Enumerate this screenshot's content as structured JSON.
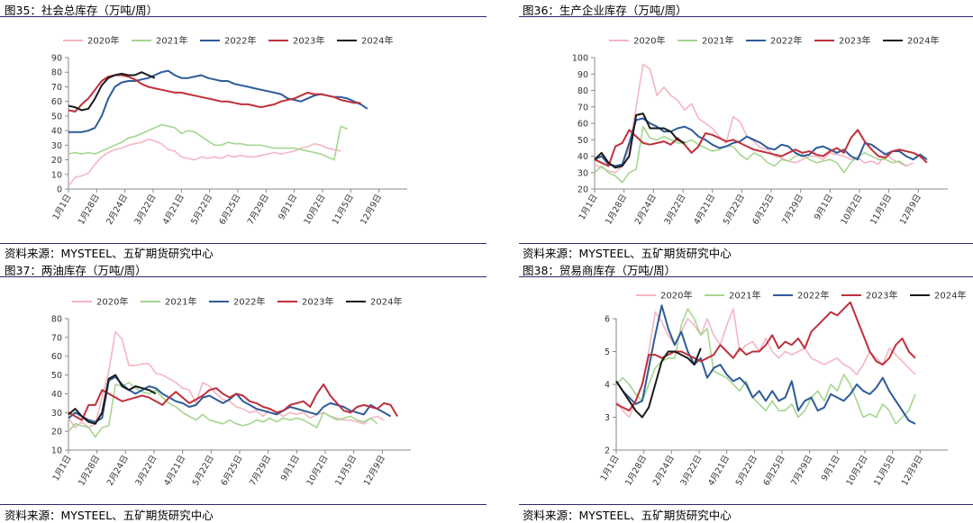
{
  "panels": [
    {
      "title": "图35：社会总库存（万吨/周）",
      "source": "资料来源：MYSTEEL、五矿期货研究中心",
      "chart_data": {
        "type": "line",
        "ylim": [
          0,
          90
        ],
        "yticks": [
          0,
          10,
          20,
          30,
          40,
          50,
          60,
          70,
          80,
          90
        ],
        "xticks": [
          "1月1日",
          "1月28日",
          "2月24日",
          "3月22日",
          "4月21日",
          "5月22日",
          "6月25日",
          "7月29日",
          "9月1日",
          "10月2日",
          "11月5日",
          "12月9日"
        ],
        "series": [
          {
            "name": "2020年",
            "color": "#f4b6c2",
            "values": [
              2,
              8,
              9,
              11,
              17,
              22,
              25,
              27,
              28,
              30,
              31,
              32,
              34,
              33,
              31,
              27,
              26,
              22,
              21,
              20,
              22,
              21,
              22,
              21,
              23,
              22,
              23,
              22,
              22,
              23,
              24,
              25,
              24,
              25,
              26,
              28,
              29,
              31,
              30,
              28,
              27,
              26
            ]
          },
          {
            "name": "2021年",
            "color": "#a5d68f",
            "values": [
              24,
              25,
              24,
              25,
              24,
              26,
              28,
              30,
              32,
              35,
              36,
              38,
              40,
              42,
              44,
              43,
              42,
              38,
              40,
              39,
              36,
              33,
              30,
              30,
              32,
              31,
              31,
              30,
              30,
              30,
              29,
              28,
              28,
              28,
              28,
              27,
              26,
              25,
              24,
              22,
              20,
              43,
              41
            ]
          },
          {
            "name": "2022年",
            "color": "#2e5b9a",
            "values": [
              39,
              39,
              39,
              40,
              42,
              50,
              62,
              70,
              73,
              74,
              74,
              75,
              76,
              78,
              80,
              81,
              78,
              76,
              76,
              77,
              78,
              76,
              75,
              74,
              74,
              72,
              71,
              70,
              69,
              68,
              67,
              66,
              65,
              62,
              61,
              60,
              62,
              64,
              65,
              64,
              63,
              63,
              62,
              60,
              58,
              55
            ]
          },
          {
            "name": "2023年",
            "color": "#c0303a",
            "values": [
              54,
              53,
              58,
              62,
              68,
              74,
              77,
              78,
              78,
              77,
              75,
              72,
              70,
              69,
              68,
              67,
              66,
              66,
              65,
              64,
              63,
              62,
              61,
              60,
              60,
              59,
              58,
              58,
              57,
              56,
              57,
              58,
              60,
              61,
              62,
              64,
              66,
              65,
              65,
              64,
              63,
              61,
              60,
              59,
              59
            ]
          },
          {
            "name": "2024年",
            "color": "#1a1a1a",
            "values": [
              57,
              56,
              54,
              55,
              62,
              71,
              76,
              78,
              79,
              78,
              78,
              80,
              78,
              76
            ]
          }
        ]
      }
    },
    {
      "title": "图36：生产企业库存（万吨/周）",
      "source": "资料来源：MYSTEEL、五矿期货研究中心",
      "chart_data": {
        "type": "line",
        "ylim": [
          20,
          100
        ],
        "yticks": [
          20,
          30,
          40,
          50,
          60,
          70,
          80,
          90,
          100
        ],
        "xticks": [
          "1月1日",
          "1月28日",
          "2月24日",
          "3月22日",
          "4月21日",
          "5月22日",
          "6月25日",
          "7月29日",
          "9月1日",
          "10月2日",
          "11月5日",
          "12月9日"
        ],
        "series": [
          {
            "name": "2020年",
            "color": "#f4b6c2",
            "values": [
              35,
              33,
              31,
              30,
              34,
              45,
              70,
              96,
              93,
              77,
              82,
              77,
              74,
              68,
              72,
              63,
              60,
              57,
              52,
              48,
              64,
              61,
              52,
              49,
              45,
              44,
              40,
              39,
              37,
              36,
              38,
              40,
              40,
              38,
              42,
              41,
              40,
              38,
              39,
              36,
              37,
              35,
              42,
              38,
              36,
              34,
              36
            ]
          },
          {
            "name": "2021年",
            "color": "#a5d68f",
            "values": [
              30,
              34,
              30,
              28,
              24,
              30,
              32,
              58,
              51,
              50,
              52,
              50,
              48,
              48,
              50,
              47,
              45,
              43,
              44,
              46,
              46,
              41,
              38,
              42,
              40,
              36,
              34,
              38,
              37,
              40,
              41,
              38,
              36,
              37,
              38,
              36,
              30,
              36,
              40,
              42,
              40,
              38,
              38,
              36,
              37,
              34
            ]
          },
          {
            "name": "2022年",
            "color": "#2e5b9a",
            "values": [
              38,
              40,
              35,
              34,
              35,
              48,
              62,
              63,
              60,
              58,
              55,
              55,
              57,
              58,
              56,
              52,
              50,
              47,
              45,
              46,
              48,
              49,
              52,
              50,
              48,
              45,
              44,
              47,
              46,
              42,
              40,
              41,
              45,
              46,
              44,
              42,
              44,
              40,
              38,
              48,
              47,
              44,
              41,
              43,
              43,
              40,
              38,
              41,
              38
            ]
          },
          {
            "name": "2023年",
            "color": "#c0303a",
            "values": [
              38,
              36,
              34,
              46,
              48,
              56,
              52,
              48,
              47,
              48,
              49,
              47,
              51,
              47,
              42,
              46,
              54,
              53,
              51,
              49,
              50,
              48,
              46,
              44,
              43,
              42,
              41,
              40,
              42,
              44,
              42,
              43,
              41,
              40,
              43,
              45,
              42,
              51,
              56,
              49,
              44,
              40,
              39,
              43,
              44,
              43,
              42,
              40,
              36
            ]
          },
          {
            "name": "2024年",
            "color": "#1a1a1a",
            "values": [
              38,
              42,
              36,
              33,
              34,
              40,
              65,
              66,
              57,
              57,
              57,
              55,
              50,
              48
            ]
          }
        ]
      }
    },
    {
      "title": "图37：两油库存（万吨/周）",
      "source": "资料来源：MYSTEEL、五矿期货研究中心",
      "chart_data": {
        "type": "line",
        "ylim": [
          10,
          80
        ],
        "yticks": [
          10,
          20,
          30,
          40,
          50,
          60,
          70,
          80
        ],
        "xticks": [
          "1月1日",
          "1月28日",
          "2月24日",
          "3月22日",
          "4月21日",
          "5月22日",
          "6月25日",
          "7月29日",
          "9月1日",
          "10月2日",
          "11月5日",
          "12月9日"
        ],
        "series": [
          {
            "name": "2020年",
            "color": "#f4b6c2",
            "values": [
              27,
              22,
              25,
              22,
              24,
              38,
              52,
              73,
              69,
              55,
              55,
              56,
              56,
              51,
              50,
              48,
              46,
              43,
              42,
              35,
              46,
              44,
              40,
              37,
              36,
              33,
              32,
              30,
              31,
              28,
              32,
              30,
              28,
              30,
              29,
              30,
              27,
              29,
              30,
              28,
              27,
              26,
              26,
              25,
              24,
              27,
              28,
              26
            ]
          },
          {
            "name": "2021年",
            "color": "#a5d68f",
            "values": [
              20,
              24,
              23,
              22,
              17,
              22,
              23,
              45,
              44,
              46,
              43,
              41,
              40,
              42,
              38,
              35,
              33,
              30,
              28,
              26,
              29,
              26,
              25,
              24,
              26,
              24,
              23,
              24,
              26,
              25,
              27,
              25,
              27,
              26,
              27,
              26,
              24,
              22,
              30,
              28,
              26,
              27,
              28,
              26,
              25,
              27,
              24
            ]
          },
          {
            "name": "2022年",
            "color": "#2e5b9a",
            "values": [
              27,
              30,
              28,
              26,
              25,
              27,
              47,
              49,
              45,
              42,
              40,
              42,
              44,
              43,
              40,
              38,
              36,
              35,
              33,
              34,
              38,
              39,
              37,
              35,
              37,
              40,
              36,
              34,
              32,
              31,
              30,
              29,
              31,
              33,
              32,
              31,
              30,
              29,
              33,
              35,
              34,
              33,
              31,
              30,
              29,
              34,
              32,
              30,
              28
            ]
          },
          {
            "name": "2023年",
            "color": "#c0303a",
            "values": [
              30,
              28,
              26,
              34,
              34,
              42,
              40,
              38,
              36,
              37,
              38,
              39,
              38,
              36,
              34,
              38,
              41,
              38,
              35,
              37,
              39,
              42,
              43,
              40,
              38,
              40,
              39,
              36,
              35,
              33,
              32,
              30,
              31,
              34,
              35,
              36,
              33,
              40,
              45,
              39,
              35,
              31,
              30,
              33,
              34,
              33,
              32,
              35,
              34,
              28
            ]
          },
          {
            "name": "2024年",
            "color": "#1a1a1a",
            "values": [
              29,
              32,
              28,
              25,
              24,
              30,
              48,
              50,
              44,
              42,
              44,
              43,
              42,
              40
            ]
          }
        ]
      }
    },
    {
      "title": "图38：贸易商库存（万吨/周）",
      "source": "资料来源：MYSTEEL、五矿期货研究中心",
      "chart_data": {
        "type": "line",
        "ylim": [
          2,
          6
        ],
        "yticks": [
          2,
          3,
          4,
          5,
          6
        ],
        "xticks": [
          "1月1日",
          "1月28日",
          "2月24日",
          "3月22日",
          "4月21日",
          "5月22日",
          "6月25日",
          "7月29日",
          "9月1日",
          "10月2日",
          "11月5日",
          "12月9日"
        ],
        "series": [
          {
            "name": "2020年",
            "color": "#f4b6c2",
            "values": [
              3.5,
              3.2,
              3.0,
              3.5,
              4.0,
              5.0,
              6.2,
              5.9,
              5.5,
              5.2,
              5.6,
              6.0,
              5.8,
              5.5,
              6.0,
              5.5,
              5.2,
              5.8,
              6.3,
              5.0,
              5.2,
              5.3,
              5.0,
              5.4,
              5.0,
              4.8,
              5.0,
              4.9,
              5.0,
              5.1,
              4.8,
              4.7,
              4.6,
              4.7,
              4.8,
              4.6,
              4.5,
              4.3,
              4.6,
              5.0,
              4.8,
              4.6,
              5.1,
              4.9,
              4.7,
              4.5,
              4.3
            ]
          },
          {
            "name": "2021年",
            "color": "#a5d68f",
            "values": [
              4.0,
              4.2,
              4.0,
              3.7,
              3.5,
              4.0,
              4.5,
              4.7,
              4.8,
              4.8,
              5.8,
              6.3,
              6.0,
              5.5,
              5.7,
              4.4,
              4.3,
              4.2,
              4.0,
              3.8,
              4.1,
              3.6,
              3.4,
              3.2,
              3.5,
              3.2,
              3.2,
              3.4,
              3.0,
              3.2,
              3.6,
              3.8,
              3.5,
              4.0,
              3.8,
              4.3,
              4.0,
              3.5,
              3.0,
              3.1,
              3.0,
              3.4,
              3.2,
              2.8,
              3.0,
              3.2,
              3.7
            ]
          },
          {
            "name": "2022年",
            "color": "#2e5b9a",
            "values": [
              4.1,
              3.8,
              3.6,
              3.4,
              3.5,
              4.5,
              5.5,
              6.4,
              5.7,
              5.2,
              5.6,
              5.0,
              4.6,
              4.8,
              4.2,
              4.5,
              4.6,
              4.3,
              4.1,
              4.2,
              4.0,
              3.6,
              3.8,
              3.5,
              3.8,
              3.5,
              3.6,
              4.1,
              3.2,
              3.5,
              3.6,
              3.2,
              3.3,
              3.7,
              3.6,
              3.5,
              3.7,
              4.0,
              3.8,
              3.7,
              3.9,
              4.2,
              3.8,
              3.5,
              3.2,
              2.9,
              2.8
            ]
          },
          {
            "name": "2023年",
            "color": "#c0303a",
            "values": [
              3.4,
              3.3,
              3.2,
              3.5,
              4.0,
              4.9,
              4.9,
              4.8,
              4.9,
              5.0,
              5.0,
              4.9,
              4.8,
              4.7,
              4.8,
              4.9,
              5.2,
              5.0,
              4.8,
              5.1,
              4.9,
              5.0,
              5.0,
              5.2,
              5.5,
              5.1,
              5.3,
              5.2,
              5.4,
              5.1,
              5.6,
              5.8,
              6.0,
              6.2,
              6.1,
              6.3,
              6.5,
              6.0,
              5.5,
              5.0,
              4.7,
              4.6,
              4.8,
              5.2,
              5.4,
              5.0,
              4.8
            ]
          },
          {
            "name": "2024年",
            "color": "#1a1a1a",
            "values": [
              4.1,
              3.8,
              3.5,
              3.2,
              3.0,
              3.3,
              4.0,
              4.7,
              5.0,
              5.0,
              4.9,
              4.8,
              4.6,
              5.1
            ]
          }
        ]
      }
    }
  ]
}
